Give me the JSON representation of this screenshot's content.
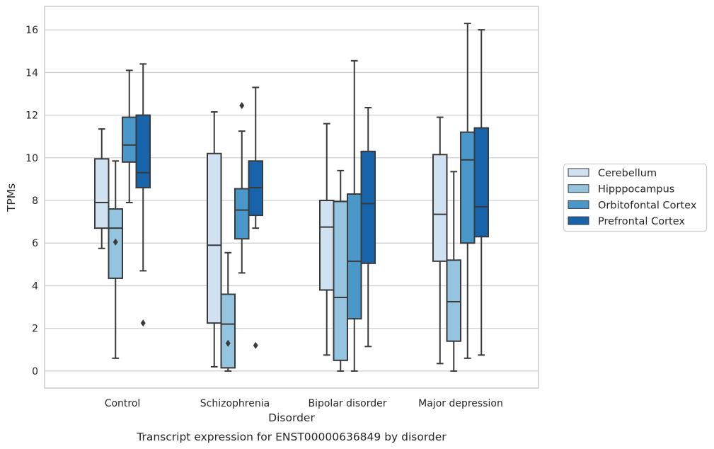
{
  "caption": "Transcript expression for ENST00000636849 by disorder",
  "chart_data": {
    "type": "boxplot",
    "xlabel": "Disorder",
    "ylabel": "TPMs",
    "ylim": [
      -0.8,
      17.1
    ],
    "yticks": [
      0,
      2,
      4,
      6,
      8,
      10,
      12,
      14,
      16
    ],
    "grid": "horizontal",
    "legend_placement": "right",
    "categories": [
      "Control",
      "Schizophrenia",
      "Bipolar disorder",
      "Major depression"
    ],
    "series": [
      {
        "name": "Cerebellum",
        "color": "#d0e1f2",
        "boxes": [
          {
            "whisker_low": 5.75,
            "q1": 6.7,
            "median": 7.9,
            "q3": 9.95,
            "whisker_high": 11.35,
            "outliers": []
          },
          {
            "whisker_low": 0.2,
            "q1": 2.25,
            "median": 5.9,
            "q3": 10.2,
            "whisker_high": 12.15,
            "outliers": []
          },
          {
            "whisker_low": 0.75,
            "q1": 3.8,
            "median": 6.75,
            "q3": 8.0,
            "whisker_high": 11.6,
            "outliers": []
          },
          {
            "whisker_low": 0.35,
            "q1": 5.15,
            "median": 7.35,
            "q3": 10.15,
            "whisker_high": 11.9,
            "outliers": []
          }
        ]
      },
      {
        "name": "Hipppocampus",
        "color": "#94c4df",
        "boxes": [
          {
            "whisker_low": 0.6,
            "q1": 4.35,
            "median": 6.7,
            "q3": 7.6,
            "whisker_high": 9.85,
            "outliers": [
              6.05
            ]
          },
          {
            "whisker_low": 0.0,
            "q1": 0.15,
            "median": 2.2,
            "q3": 3.6,
            "whisker_high": 5.55,
            "outliers": [
              1.3
            ]
          },
          {
            "whisker_low": 0.0,
            "q1": 0.5,
            "median": 3.45,
            "q3": 7.95,
            "whisker_high": 9.4,
            "outliers": []
          },
          {
            "whisker_low": 0.0,
            "q1": 1.4,
            "median": 3.25,
            "q3": 5.2,
            "whisker_high": 9.35,
            "outliers": []
          }
        ]
      },
      {
        "name": "Orbitofontal Cortex",
        "color": "#4a98c9",
        "boxes": [
          {
            "whisker_low": 7.9,
            "q1": 9.8,
            "median": 10.6,
            "q3": 11.9,
            "whisker_high": 14.1,
            "outliers": []
          },
          {
            "whisker_low": 4.6,
            "q1": 6.2,
            "median": 7.55,
            "q3": 8.55,
            "whisker_high": 11.25,
            "outliers": [
              12.45
            ]
          },
          {
            "whisker_low": 0.0,
            "q1": 2.45,
            "median": 5.15,
            "q3": 8.3,
            "whisker_high": 14.55,
            "outliers": []
          },
          {
            "whisker_low": 0.6,
            "q1": 6.0,
            "median": 9.9,
            "q3": 11.2,
            "whisker_high": 16.3,
            "outliers": []
          }
        ]
      },
      {
        "name": "Prefrontal Cortex",
        "color": "#1764ab",
        "boxes": [
          {
            "whisker_low": 4.7,
            "q1": 8.6,
            "median": 9.3,
            "q3": 12.0,
            "whisker_high": 14.4,
            "outliers": [
              2.25
            ]
          },
          {
            "whisker_low": 6.7,
            "q1": 7.3,
            "median": 8.6,
            "q3": 9.85,
            "whisker_high": 13.3,
            "outliers": [
              1.2
            ]
          },
          {
            "whisker_low": 1.15,
            "q1": 5.05,
            "median": 7.85,
            "q3": 10.3,
            "whisker_high": 12.35,
            "outliers": []
          },
          {
            "whisker_low": 0.75,
            "q1": 6.3,
            "median": 7.7,
            "q3": 11.4,
            "whisker_high": 16.0,
            "outliers": []
          }
        ]
      }
    ]
  },
  "style": {
    "edge_color": "#3a3a3a",
    "grid_color": "#cccccc",
    "frame_color": "#cccccc"
  }
}
